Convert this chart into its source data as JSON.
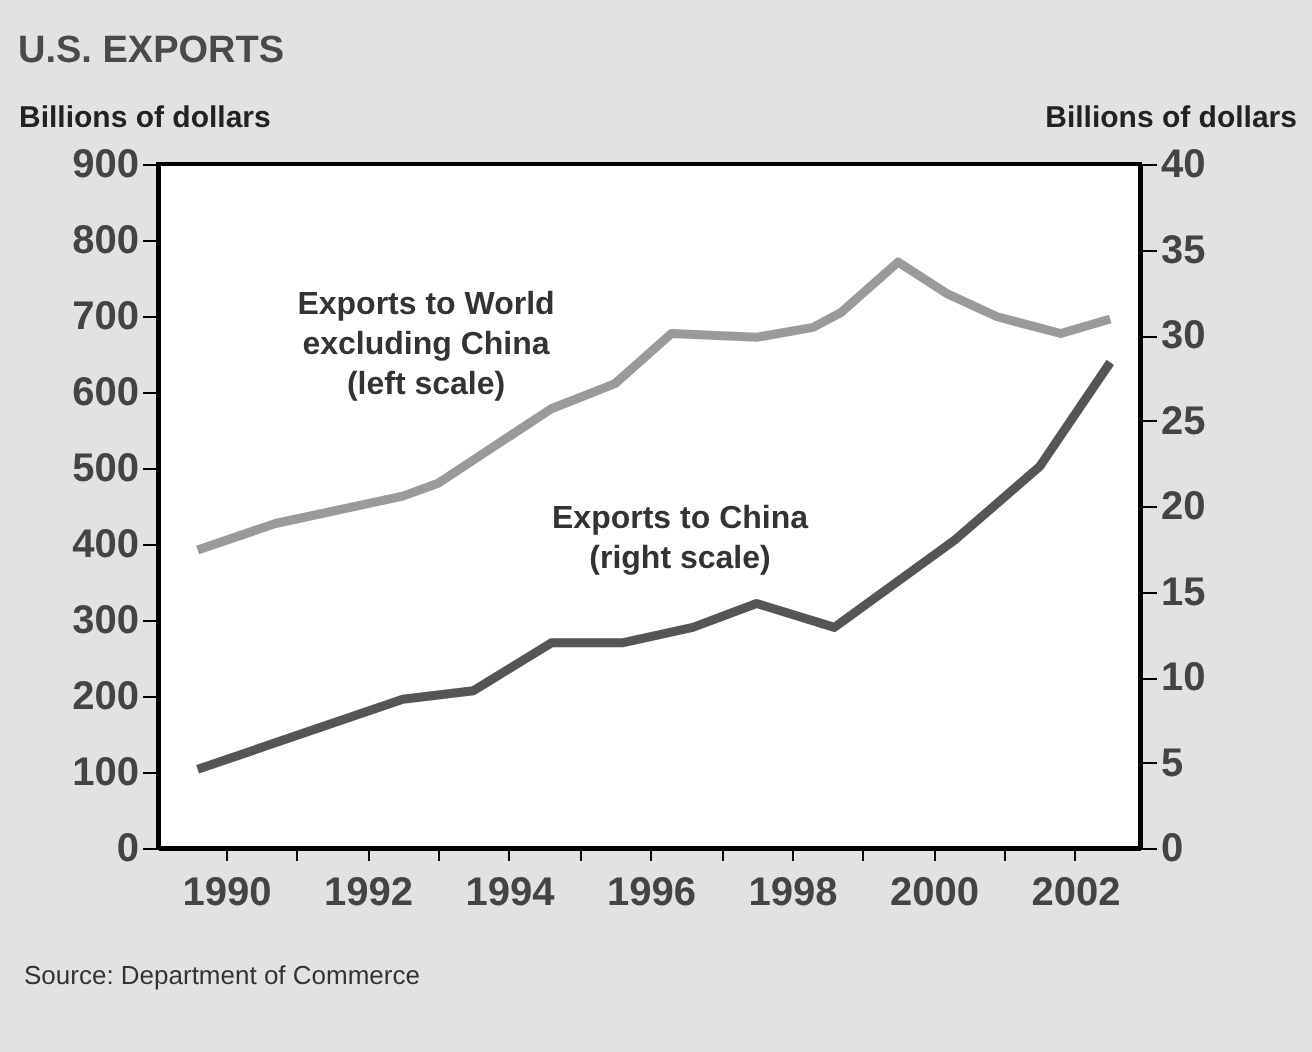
{
  "chart_data": {
    "type": "line",
    "title": "U.S. EXPORTS",
    "ylabel": "Billions of dollars",
    "y2label": "Billions of dollars",
    "xlim": [
      1989.04,
      2002.92
    ],
    "xticks": [
      1990,
      {
        "value": 1991,
        "label": null
      },
      1992,
      {
        "value": 1993,
        "label": null
      },
      1994,
      {
        "value": 1995,
        "label": null
      },
      1996,
      {
        "value": 1997,
        "label": null
      },
      1998,
      {
        "value": 1999,
        "label": null
      },
      2000,
      {
        "value": 2001,
        "label": null
      },
      2002
    ],
    "ylim": [
      0,
      900
    ],
    "yticks": [
      0,
      100,
      200,
      300,
      400,
      500,
      600,
      700,
      800,
      900
    ],
    "y2lim": [
      0,
      40
    ],
    "y2ticks": [
      0,
      5,
      10,
      15,
      20,
      25,
      30,
      35,
      40
    ],
    "grid": false,
    "line_style": "solid",
    "marker": "none",
    "series": [
      {
        "name": "Exports to World\nexcluding China\n(left scale)",
        "color": "#9a9a9a",
        "x": [
          1989.6,
          1990.7,
          1992.5,
          1993.0,
          1994.6,
          1995.5,
          1996.3,
          1997.5,
          1998.3,
          1998.7,
          1999.5,
          2000.2,
          2000.9,
          2001.8,
          2002.5
        ],
        "values": [
          392,
          427,
          463,
          480,
          578,
          611,
          677,
          672,
          685,
          705,
          771,
          729,
          699,
          677,
          696
        ]
      },
      {
        "name": "Exports to China\n(right scale)",
        "color": "#555555",
        "axis": "y2",
        "x": [
          1989.6,
          1992.5,
          1993.5,
          1994.6,
          1995.6,
          1996.6,
          1997.5,
          1998.6,
          2000.3,
          2001.5,
          2002.5
        ],
        "values": [
          4.6,
          8.7,
          9.2,
          12.0,
          12.0,
          12.9,
          14.3,
          12.9,
          18.0,
          22.3,
          28.4
        ]
      }
    ],
    "annotations": [
      "Source: Department of Commerce"
    ]
  }
}
